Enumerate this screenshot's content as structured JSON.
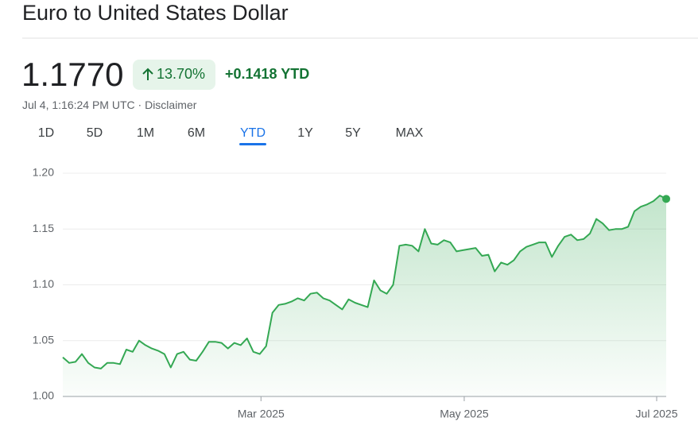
{
  "header": {
    "title": "Euro to United States Dollar",
    "price": "1.1770",
    "change_percent": "13.70%",
    "change_abs": "+0.1418 YTD",
    "timestamp": "Jul 4, 1:16:24 PM UTC",
    "disclaimer": "Disclaimer"
  },
  "tabs": {
    "items": [
      "1D",
      "5D",
      "1M",
      "6M",
      "YTD",
      "1Y",
      "5Y",
      "MAX"
    ],
    "selected": 4
  },
  "chart_data": {
    "type": "area",
    "color": "#34a853",
    "values": [
      1.035,
      1.03,
      1.031,
      1.038,
      1.03,
      1.026,
      1.025,
      1.03,
      1.03,
      1.029,
      1.042,
      1.04,
      1.05,
      1.046,
      1.043,
      1.041,
      1.038,
      1.026,
      1.038,
      1.04,
      1.033,
      1.032,
      1.04,
      1.049,
      1.049,
      1.048,
      1.043,
      1.048,
      1.046,
      1.052,
      1.04,
      1.038,
      1.045,
      1.075,
      1.082,
      1.083,
      1.085,
      1.088,
      1.086,
      1.092,
      1.093,
      1.088,
      1.086,
      1.082,
      1.078,
      1.087,
      1.084,
      1.082,
      1.08,
      1.104,
      1.095,
      1.092,
      1.1,
      1.135,
      1.136,
      1.135,
      1.13,
      1.15,
      1.137,
      1.136,
      1.14,
      1.138,
      1.13,
      1.131,
      1.132,
      1.133,
      1.126,
      1.127,
      1.112,
      1.12,
      1.118,
      1.122,
      1.13,
      1.134,
      1.136,
      1.138,
      1.138,
      1.125,
      1.135,
      1.143,
      1.145,
      1.14,
      1.141,
      1.146,
      1.159,
      1.155,
      1.149,
      1.15,
      1.15,
      1.152,
      1.166,
      1.17,
      1.172,
      1.175,
      1.18,
      1.177
    ],
    "xlim": [
      0,
      95
    ],
    "xticks": [
      {
        "value": 31.2,
        "label": "Mar 2025"
      },
      {
        "value": 63.2,
        "label": "May 2025"
      },
      {
        "value": 93.5,
        "label": "Jul 2025"
      }
    ],
    "ylim": [
      1.0,
      1.2
    ],
    "yticks": [
      {
        "value": 1.0,
        "label": "1.00"
      },
      {
        "value": 1.05,
        "label": "1.05"
      },
      {
        "value": 1.1,
        "label": "1.10"
      },
      {
        "value": 1.15,
        "label": "1.15"
      },
      {
        "value": 1.2,
        "label": "1.20"
      }
    ],
    "grid": true
  }
}
